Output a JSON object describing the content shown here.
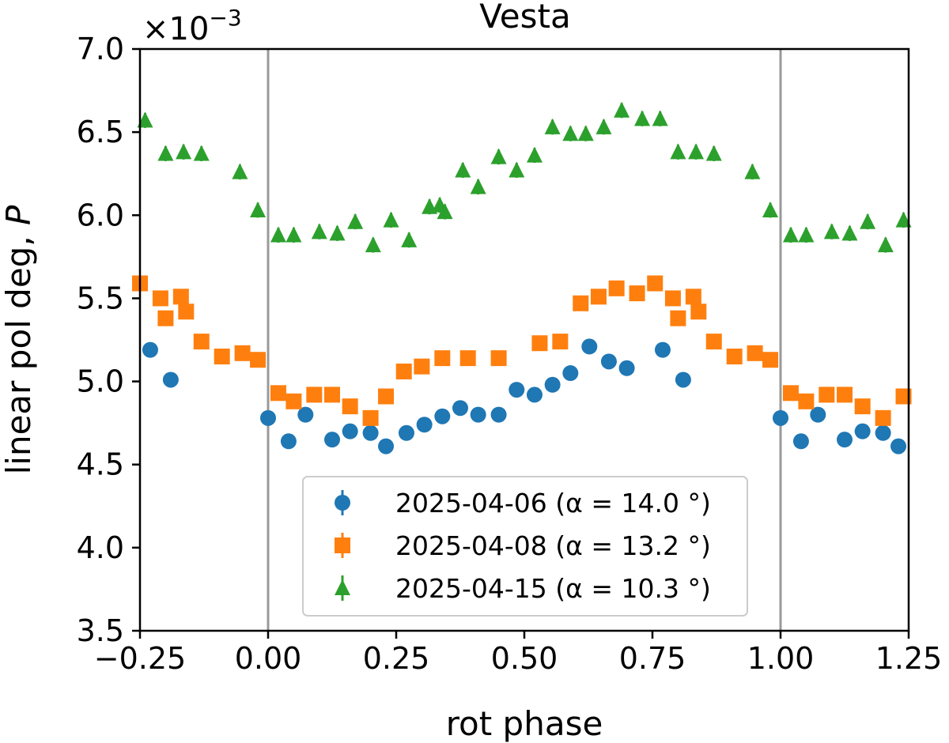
{
  "chart_data": {
    "type": "scatter",
    "title": "Vesta",
    "xlabel": "rot phase",
    "ylabel": "linear pol deg, ",
    "ylabel_symbol": "P",
    "y_multiplier": "×10",
    "y_multiplier_exp": "−3",
    "xlim": [
      -0.25,
      1.25
    ],
    "ylim": [
      3.5,
      7.0
    ],
    "xticks": [
      -0.25,
      0.0,
      0.25,
      0.5,
      0.75,
      1.0,
      1.25
    ],
    "xtick_labels": [
      "−0.25",
      "0.00",
      "0.25",
      "0.50",
      "0.75",
      "1.00",
      "1.25"
    ],
    "yticks": [
      3.5,
      4.0,
      4.5,
      5.0,
      5.5,
      6.0,
      6.5,
      7.0
    ],
    "ytick_labels": [
      "3.5",
      "4.0",
      "4.5",
      "5.0",
      "5.5",
      "6.0",
      "6.5",
      "7.0"
    ],
    "vlines": [
      0.0,
      1.0
    ],
    "legend_position": "lower-center",
    "series": [
      {
        "name": "2025-04-06 (α = 14.0°)",
        "label_date": "2025-04-06",
        "label_alpha": "(α = 14.0 °)",
        "color": "#1f77b4",
        "marker": "circle",
        "x": [
          -0.23,
          -0.19,
          0.0,
          0.04,
          0.073,
          0.125,
          0.16,
          0.2,
          0.23,
          0.27,
          0.305,
          0.34,
          0.375,
          0.41,
          0.45,
          0.485,
          0.52,
          0.555,
          0.59,
          0.627,
          0.665,
          0.7,
          0.77,
          0.81,
          1.0,
          1.04,
          1.073,
          1.125,
          1.16,
          1.2,
          1.23
        ],
        "y": [
          5.19,
          5.01,
          4.78,
          4.64,
          4.8,
          4.65,
          4.7,
          4.69,
          4.61,
          4.69,
          4.74,
          4.79,
          4.84,
          4.8,
          4.8,
          4.95,
          4.92,
          4.98,
          5.05,
          5.21,
          5.12,
          5.08,
          5.19,
          5.01,
          4.78,
          4.64,
          4.8,
          4.65,
          4.7,
          4.69,
          4.61
        ]
      },
      {
        "name": "2025-04-08 (α = 13.2°)",
        "label_date": "2025-04-08",
        "label_alpha": "(α = 13.2 °)",
        "color": "#ff7f0e",
        "marker": "square",
        "x": [
          -0.25,
          -0.21,
          -0.2,
          -0.17,
          -0.16,
          -0.13,
          -0.09,
          -0.05,
          -0.02,
          0.02,
          0.05,
          0.09,
          0.125,
          0.16,
          0.2,
          0.23,
          0.265,
          0.3,
          0.34,
          0.39,
          0.45,
          0.53,
          0.57,
          0.61,
          0.645,
          0.68,
          0.72,
          0.755,
          0.79,
          0.8,
          0.83,
          0.84,
          0.87,
          0.91,
          0.95,
          0.98,
          1.02,
          1.05,
          1.09,
          1.125,
          1.16,
          1.2,
          1.24
        ],
        "y": [
          5.59,
          5.5,
          5.38,
          5.51,
          5.42,
          5.24,
          5.15,
          5.17,
          5.13,
          4.93,
          4.88,
          4.92,
          4.92,
          4.85,
          4.78,
          4.91,
          5.06,
          5.09,
          5.14,
          5.14,
          5.14,
          5.23,
          5.24,
          5.47,
          5.51,
          5.56,
          5.53,
          5.59,
          5.5,
          5.38,
          5.51,
          5.42,
          5.24,
          5.15,
          5.17,
          5.13,
          4.93,
          4.88,
          4.92,
          4.92,
          4.85,
          4.78,
          4.91
        ]
      },
      {
        "name": "2025-04-15 (α = 10.3°)",
        "label_date": "2025-04-15",
        "label_alpha": "(α = 10.3 °)",
        "color": "#2ca02c",
        "marker": "triangle",
        "x": [
          -0.24,
          -0.2,
          -0.165,
          -0.13,
          -0.055,
          -0.02,
          0.02,
          0.05,
          0.1,
          0.135,
          0.17,
          0.205,
          0.24,
          0.275,
          0.315,
          0.335,
          0.345,
          0.38,
          0.41,
          0.45,
          0.485,
          0.52,
          0.555,
          0.59,
          0.62,
          0.655,
          0.69,
          0.73,
          0.765,
          0.8,
          0.835,
          0.87,
          0.945,
          0.98,
          1.02,
          1.05,
          1.1,
          1.135,
          1.17,
          1.205,
          1.24
        ],
        "y": [
          6.57,
          6.37,
          6.38,
          6.37,
          6.26,
          6.03,
          5.88,
          5.88,
          5.9,
          5.89,
          5.96,
          5.82,
          5.97,
          5.85,
          6.05,
          6.06,
          6.02,
          6.27,
          6.17,
          6.35,
          6.27,
          6.36,
          6.53,
          6.49,
          6.49,
          6.53,
          6.63,
          6.58,
          6.58,
          6.38,
          6.38,
          6.37,
          6.26,
          6.03,
          5.88,
          5.88,
          5.9,
          5.89,
          5.96,
          5.82,
          5.97
        ]
      }
    ]
  }
}
